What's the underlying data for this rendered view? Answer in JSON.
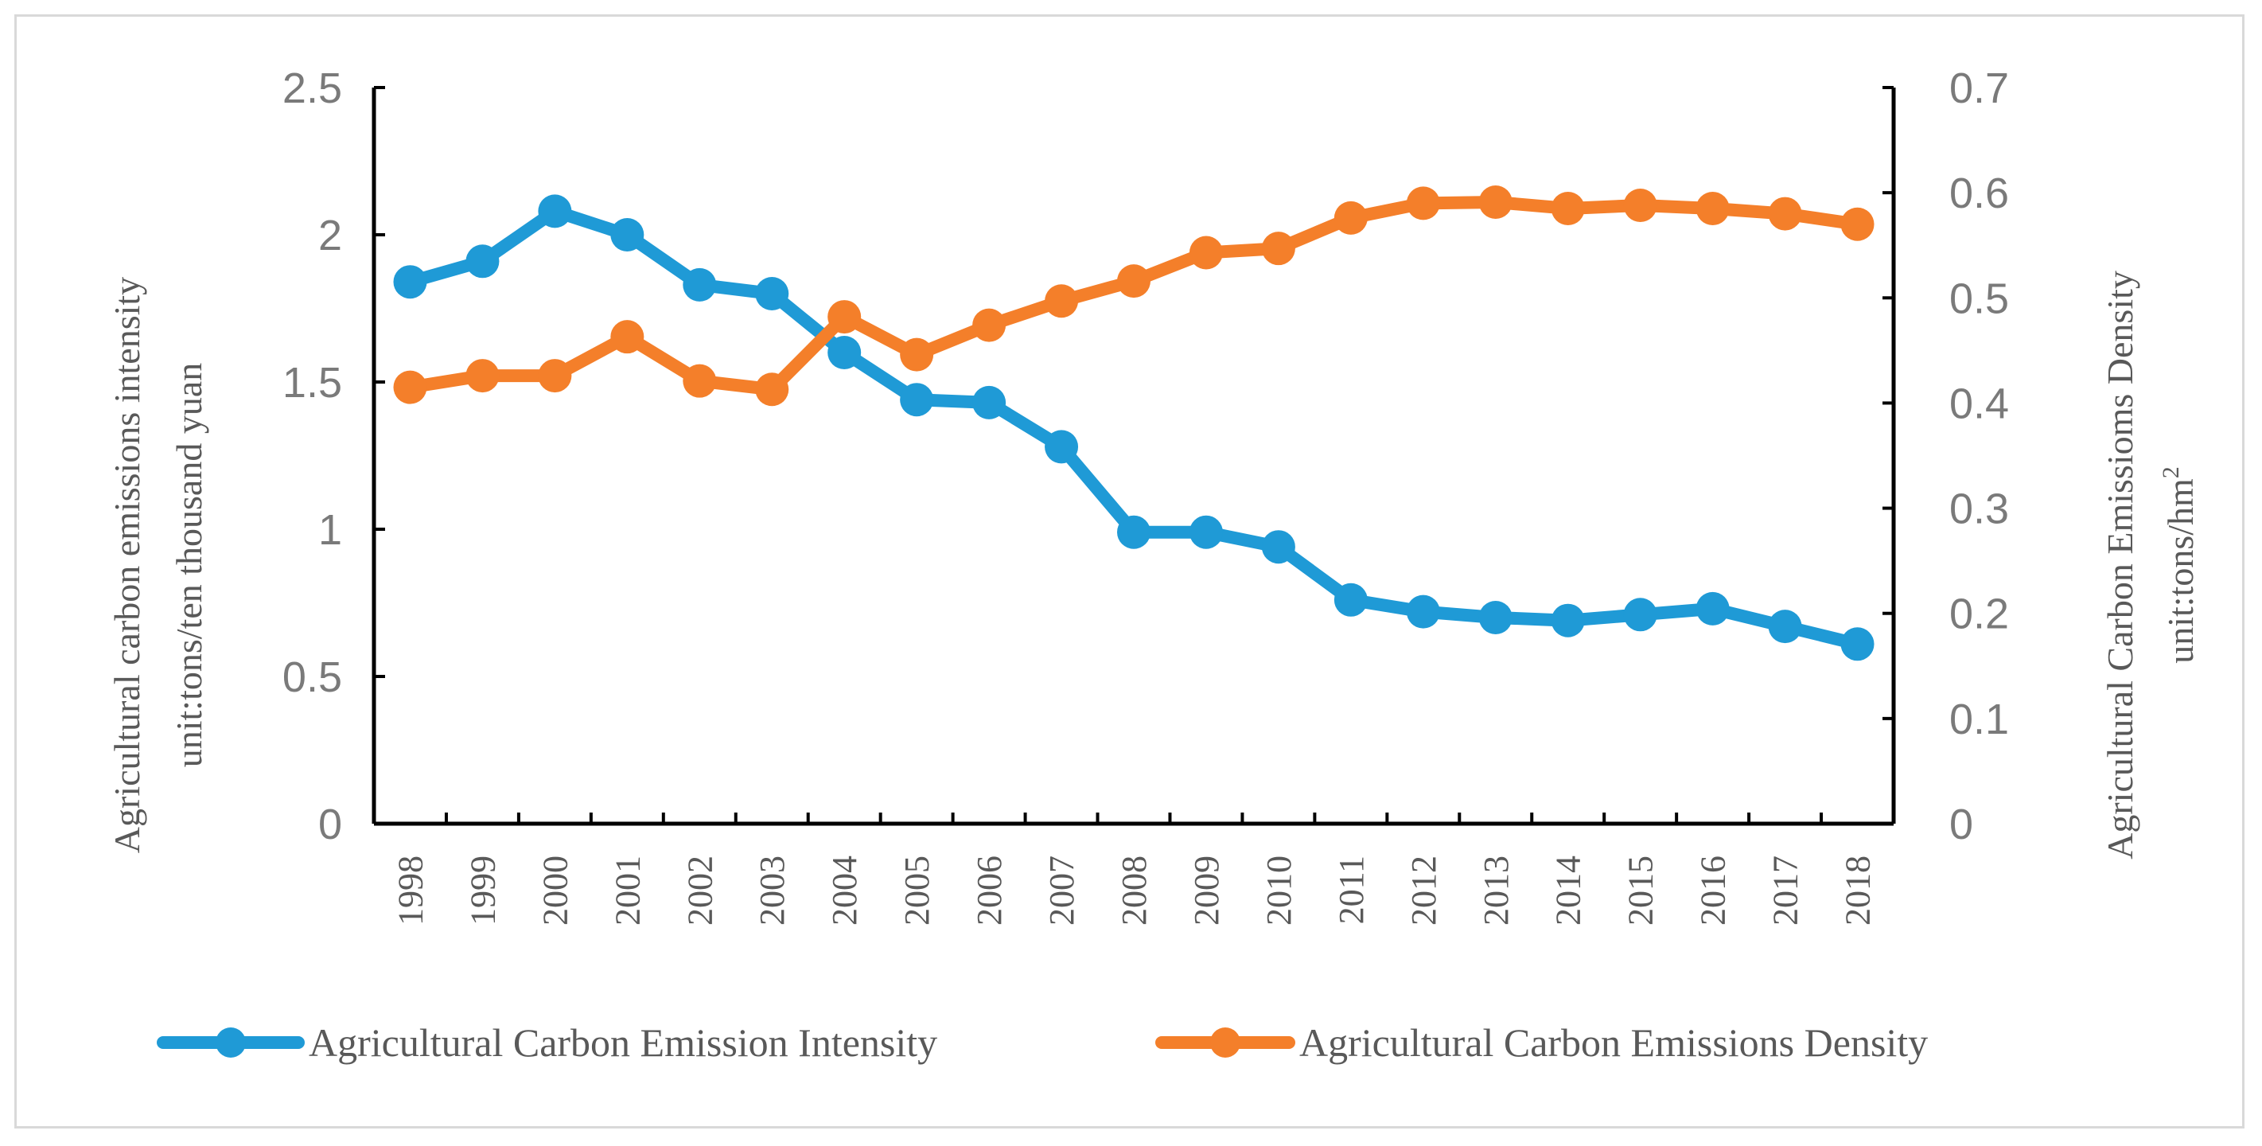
{
  "chart_data": {
    "type": "line",
    "title": "",
    "categories": [
      "1998",
      "1999",
      "2000",
      "2001",
      "2002",
      "2003",
      "2004",
      "2005",
      "2006",
      "2007",
      "2008",
      "2009",
      "2010",
      "2011",
      "2012",
      "2013",
      "2014",
      "2015",
      "2016",
      "2017",
      "2018"
    ],
    "series": [
      {
        "name": "Agricultural Carbon Emission Intensity",
        "axis": "left",
        "color": "#1f9ad6",
        "values": [
          1.84,
          1.91,
          2.08,
          2.0,
          1.83,
          1.8,
          1.6,
          1.44,
          1.43,
          1.28,
          0.99,
          0.99,
          0.94,
          0.76,
          0.72,
          0.7,
          0.69,
          0.71,
          0.73,
          0.67,
          0.61
        ]
      },
      {
        "name": "Agricultural Carbon Emissions Density",
        "axis": "right",
        "color": "#f47f2a",
        "values": [
          0.415,
          0.426,
          0.426,
          0.463,
          0.421,
          0.413,
          0.482,
          0.446,
          0.474,
          0.497,
          0.516,
          0.543,
          0.547,
          0.576,
          0.59,
          0.591,
          0.585,
          0.588,
          0.585,
          0.58,
          0.57
        ]
      }
    ],
    "left_axis": {
      "label_line1": "Agricultural carbon emissions intensity",
      "label_line2": "unit:tons/ten thousand yuan",
      "ylim": [
        0,
        2.5
      ],
      "ticks": [
        "0",
        "0.5",
        "1",
        "1.5",
        "2",
        "2.5"
      ]
    },
    "right_axis": {
      "label_line1": "Agricultural Carbon Emissioms Density",
      "label_line2_prefix": "unit:tons/hm",
      "label_line2_sup": "2",
      "ylim": [
        0,
        0.7
      ],
      "ticks": [
        "0",
        "0.1",
        "0.2",
        "0.3",
        "0.4",
        "0.5",
        "0.6",
        "0.7"
      ]
    },
    "legend": {
      "position": "bottom",
      "items": [
        "Agricultural Carbon Emission Intensity",
        "Agricultural Carbon Emissions Density"
      ]
    },
    "grid": false
  }
}
